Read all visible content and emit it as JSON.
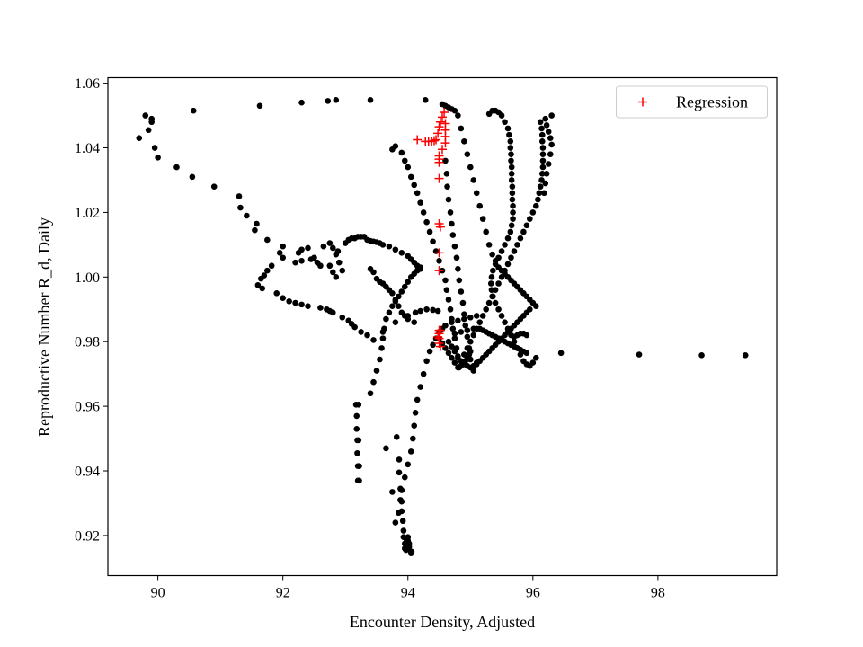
{
  "chart_data": {
    "type": "scatter",
    "title": "",
    "xlabel": "Encounter Density, Adjusted",
    "ylabel": "Reproductive Number R_d, Daily",
    "xlim": [
      89.2,
      99.9
    ],
    "ylim": [
      0.9076,
      1.0617
    ],
    "xticks": [
      90,
      92,
      94,
      96,
      98
    ],
    "yticks": [
      0.92,
      0.94,
      0.96,
      0.98,
      1.0,
      1.02,
      1.04,
      1.06
    ],
    "xtick_labels": [
      "90",
      "92",
      "94",
      "96",
      "98"
    ],
    "ytick_labels": [
      "0.92",
      "0.94",
      "0.96",
      "0.98",
      "1.00",
      "1.02",
      "1.04",
      "1.06"
    ],
    "grid": false,
    "legend_position": "top-right",
    "colors": {
      "data": "#000000",
      "regression": "#ff0000"
    },
    "series": [
      {
        "name": "",
        "marker": "dot",
        "x": [
          89.7,
          89.8,
          89.85,
          89.9,
          89.95,
          90.0,
          90.3,
          90.55,
          90.57,
          90.9,
          91.3,
          91.32,
          91.42,
          91.55,
          91.58,
          91.63,
          91.75,
          91.95,
          92.0,
          92.0,
          92.3,
          92.72,
          92.85,
          93.4,
          94.28,
          89.9,
          91.65,
          91.6,
          91.67,
          91.7,
          91.75,
          91.82,
          91.9,
          92.0,
          92.1,
          92.2,
          92.3,
          92.4,
          92.6,
          92.7,
          92.75,
          92.8,
          92.95,
          93.05,
          93.1,
          93.15,
          93.25,
          93.35,
          92.25,
          92.3,
          92.4,
          92.5,
          92.55,
          92.6,
          92.65,
          92.75,
          92.8,
          92.85,
          92.9,
          92.95,
          93.0,
          93.05,
          93.1,
          93.15,
          93.2,
          93.25,
          93.3,
          93.35,
          93.4,
          93.45,
          93.5,
          93.55,
          93.6,
          93.7,
          93.8,
          93.9,
          94.0,
          94.05,
          94.1,
          94.15,
          94.2,
          92.2,
          92.3,
          92.45,
          92.75,
          92.8,
          92.85,
          92.88,
          93.4,
          93.45,
          93.5,
          93.55,
          93.6,
          93.65,
          93.7,
          93.75,
          93.8,
          93.85,
          93.9,
          93.95,
          94.0,
          94.1,
          93.45,
          93.6,
          93.8,
          94.0,
          94.12,
          94.2,
          94.3,
          94.4,
          94.48,
          93.4,
          93.45,
          93.5,
          93.55,
          93.58,
          93.6,
          93.62,
          93.65,
          93.7,
          93.75,
          93.8,
          93.85,
          93.9,
          93.95,
          94.0,
          94.05,
          94.1,
          94.15,
          94.2,
          93.17,
          93.18,
          93.18,
          93.19,
          93.19,
          93.2,
          93.2,
          93.21,
          93.21,
          93.22,
          93.22,
          93.65,
          93.75,
          93.82,
          93.86,
          93.86,
          93.88,
          93.9,
          93.9,
          93.92,
          93.93,
          93.93,
          93.95,
          93.95,
          93.97,
          93.97,
          93.98,
          93.98,
          94.0,
          94.0,
          94.02,
          94.02,
          94.05,
          94.05,
          94.06,
          93.8,
          93.85,
          93.88,
          93.9,
          93.95,
          94.0,
          94.05,
          94.08,
          94.1,
          94.12,
          94.15,
          94.2,
          94.25,
          94.3,
          94.35,
          94.4,
          94.45,
          94.5,
          94.55,
          94.6,
          94.7,
          94.8,
          94.9,
          95.0,
          95.1,
          93.75,
          93.8,
          93.9,
          93.95,
          94.0,
          94.05,
          94.1,
          94.15,
          94.2,
          94.25,
          94.3,
          94.35,
          94.4,
          94.45,
          94.5,
          94.55,
          94.6,
          94.62,
          94.65,
          94.68,
          94.7,
          94.72,
          94.75,
          94.78,
          94.8,
          94.82,
          94.85,
          94.88,
          94.9,
          94.92,
          94.95,
          94.98,
          95.0,
          94.55,
          94.6,
          94.65,
          94.7,
          94.75,
          94.8,
          94.85,
          94.9,
          94.95,
          95.0,
          95.05,
          95.1,
          95.15,
          95.2,
          95.25,
          95.3,
          95.35,
          95.4,
          95.45,
          95.5,
          95.55,
          95.6,
          95.65,
          95.7,
          95.75,
          95.8,
          95.85,
          95.9,
          95.95,
          96.0,
          96.05,
          95.3,
          95.35,
          95.4,
          95.45,
          95.5,
          95.55,
          95.6,
          95.62,
          95.64,
          95.64,
          95.65,
          95.65,
          95.66,
          95.66,
          95.66,
          95.67,
          95.67,
          95.67,
          95.68,
          95.68,
          95.68,
          95.66,
          95.64,
          95.6,
          95.55,
          95.5,
          95.45,
          95.4,
          95.36,
          95.34,
          95.33,
          95.34,
          95.36,
          95.4,
          95.45,
          95.5,
          95.55,
          95.6,
          95.65,
          95.7,
          95.75,
          95.8,
          95.85,
          95.9,
          95.95,
          96.0,
          96.05,
          96.12,
          96.14,
          96.15,
          96.15,
          96.16,
          96.16,
          96.16,
          96.16,
          96.15,
          96.14,
          96.12,
          96.1,
          96.08,
          96.05,
          96.0,
          95.95,
          95.9,
          95.85,
          95.8,
          95.75,
          95.7,
          95.65,
          95.6,
          95.55,
          95.5,
          95.45,
          95.4,
          95.35,
          95.3,
          95.25,
          95.2,
          95.15,
          95.1,
          95.05,
          95.0,
          94.95,
          94.9,
          94.85,
          94.8,
          94.75,
          94.7,
          94.65,
          94.6,
          94.55,
          94.5,
          96.2,
          96.22,
          96.25,
          96.28,
          96.3,
          96.3,
          96.28,
          96.25,
          96.22,
          96.2,
          96.18,
          94.6,
          94.62,
          94.63,
          94.65,
          94.68,
          94.7,
          94.72,
          94.75,
          94.78,
          94.8,
          94.82,
          94.85,
          94.88,
          94.9,
          94.92,
          94.95,
          94.98,
          95.0,
          95.05,
          95.1,
          94.65,
          94.7,
          94.75,
          94.8,
          94.85,
          94.9,
          94.95,
          95.0,
          95.05,
          95.1,
          95.15,
          95.2,
          95.25,
          95.3,
          95.35,
          95.4,
          95.45,
          95.5,
          95.55,
          95.6,
          95.65,
          95.7,
          95.75,
          95.8,
          95.85,
          95.9,
          95.95,
          94.75,
          94.85,
          94.95,
          95.05,
          95.15,
          95.2,
          95.25,
          95.3,
          95.35,
          95.4,
          95.45,
          95.5,
          95.55,
          95.6,
          95.65,
          95.7,
          95.75,
          95.8,
          95.85,
          95.9,
          95.7,
          95.75,
          95.8,
          95.85,
          95.9,
          96.45,
          97.7,
          98.7,
          99.4
        ],
        "y": [
          1.043,
          1.05,
          1.0455,
          1.048,
          1.04,
          1.037,
          1.034,
          1.031,
          1.0515,
          1.028,
          1.025,
          1.0215,
          1.019,
          1.0145,
          1.0165,
          1.053,
          1.0115,
          1.0075,
          1.0095,
          1.006,
          1.054,
          1.0545,
          1.0548,
          1.0548,
          1.0548,
          1.049,
          0.9995,
          0.9975,
          0.9965,
          1.0005,
          1.002,
          1.0035,
          0.995,
          0.9935,
          0.9925,
          0.992,
          0.9915,
          0.991,
          0.9905,
          0.99,
          0.9895,
          0.989,
          0.9875,
          0.9865,
          0.9855,
          0.9845,
          0.983,
          0.982,
          1.0075,
          1.0085,
          1.009,
          1.006,
          1.0045,
          1.0035,
          1.0095,
          1.0105,
          1.009,
          1.007,
          1.0045,
          1.002,
          1.0105,
          1.0115,
          1.012,
          1.012,
          1.0125,
          1.0125,
          1.0125,
          1.0115,
          1.0112,
          1.011,
          1.0108,
          1.0105,
          1.01,
          1.0095,
          1.0085,
          1.0075,
          1.0065,
          1.0055,
          1.0045,
          1.0035,
          1.0025,
          1.0045,
          1.005,
          1.0055,
          1.0035,
          1.0015,
          1.0,
          1.008,
          1.0025,
          1.0015,
          0.9995,
          0.9985,
          0.998,
          0.997,
          0.996,
          0.995,
          0.993,
          0.991,
          0.989,
          0.988,
          0.987,
          0.986,
          0.9805,
          0.983,
          0.986,
          0.988,
          0.989,
          0.9895,
          0.99,
          0.9898,
          0.9895,
          0.964,
          0.9675,
          0.971,
          0.9745,
          0.978,
          0.981,
          0.984,
          0.987,
          0.989,
          0.991,
          0.9925,
          0.994,
          0.9955,
          0.997,
          0.9985,
          1.0,
          1.001,
          1.002,
          1.003,
          0.9605,
          0.957,
          0.953,
          0.9495,
          0.9455,
          0.9415,
          0.937,
          0.9605,
          0.9495,
          0.9415,
          0.937,
          0.947,
          0.9335,
          0.9505,
          0.9435,
          0.9395,
          0.9345,
          0.9305,
          0.9275,
          0.9245,
          0.9215,
          0.9195,
          0.9175,
          0.916,
          0.9155,
          0.9165,
          0.9175,
          0.9185,
          0.9195,
          0.9185,
          0.9175,
          0.9165,
          0.915,
          0.9145,
          0.915,
          0.924,
          0.927,
          0.931,
          0.934,
          0.938,
          0.942,
          0.946,
          0.95,
          0.954,
          0.958,
          0.962,
          0.966,
          0.97,
          0.974,
          0.977,
          0.979,
          0.981,
          0.983,
          0.984,
          0.985,
          0.986,
          0.9865,
          0.987,
          0.9875,
          0.988,
          1.0395,
          1.0405,
          1.0385,
          1.036,
          1.034,
          1.031,
          1.0285,
          1.026,
          1.023,
          1.02,
          1.017,
          1.014,
          1.011,
          1.008,
          1.005,
          1.002,
          0.999,
          0.996,
          0.993,
          0.99,
          0.987,
          0.984,
          0.981,
          0.978,
          0.975,
          0.972,
          0.9725,
          0.973,
          0.9735,
          0.974,
          0.975,
          0.976,
          0.977,
          1.0535,
          1.053,
          1.0525,
          1.052,
          1.0515,
          1.05,
          1.046,
          1.042,
          1.038,
          1.034,
          1.03,
          1.026,
          1.022,
          1.018,
          1.014,
          1.01,
          1.007,
          1.005,
          1.003,
          1.002,
          1.001,
          1.0,
          0.999,
          0.998,
          0.997,
          0.996,
          0.995,
          0.994,
          0.993,
          0.992,
          0.991,
          1.0505,
          1.0515,
          1.0515,
          1.051,
          1.05,
          1.048,
          1.046,
          1.044,
          1.042,
          1.04,
          1.038,
          1.036,
          1.034,
          1.032,
          1.03,
          1.028,
          1.026,
          1.024,
          1.022,
          1.02,
          1.018,
          1.016,
          1.014,
          1.012,
          1.01,
          1.008,
          1.006,
          1.004,
          1.002,
          1.0,
          0.998,
          0.996,
          0.994,
          0.992,
          0.99,
          0.988,
          0.986,
          0.984,
          0.982,
          0.98,
          0.978,
          0.976,
          0.974,
          0.973,
          0.9725,
          0.9735,
          0.975,
          1.048,
          1.046,
          1.044,
          1.042,
          1.04,
          1.038,
          1.036,
          1.034,
          1.032,
          1.03,
          1.028,
          1.026,
          1.024,
          1.022,
          1.02,
          1.018,
          1.016,
          1.014,
          1.012,
          1.01,
          1.008,
          1.006,
          1.004,
          1.002,
          1.0,
          0.998,
          0.996,
          0.994,
          0.992,
          0.99,
          0.988,
          0.986,
          0.984,
          0.982,
          0.98,
          0.978,
          0.976,
          0.974,
          0.972,
          0.9735,
          0.975,
          0.9765,
          0.978,
          0.9795,
          0.981,
          1.049,
          1.047,
          1.045,
          1.043,
          1.041,
          1.05,
          1.038,
          1.035,
          1.032,
          1.029,
          1.026,
          1.036,
          1.032,
          1.028,
          1.024,
          1.02,
          1.0165,
          1.013,
          1.0095,
          1.006,
          1.0025,
          0.999,
          0.9955,
          0.992,
          0.9885,
          0.985,
          0.9815,
          0.978,
          0.9745,
          0.971,
          0.9735,
          0.98,
          0.9785,
          0.977,
          0.9755,
          0.974,
          0.973,
          0.9725,
          0.972,
          0.9725,
          0.973,
          0.974,
          0.975,
          0.976,
          0.977,
          0.978,
          0.979,
          0.98,
          0.981,
          0.982,
          0.983,
          0.984,
          0.985,
          0.986,
          0.987,
          0.988,
          0.989,
          0.99,
          0.9825,
          0.983,
          0.9835,
          0.984,
          0.984,
          0.9835,
          0.983,
          0.9825,
          0.982,
          0.9815,
          0.981,
          0.9805,
          0.98,
          0.9795,
          0.979,
          0.9785,
          0.978,
          0.9775,
          0.977,
          0.9765,
          0.9815,
          0.982,
          0.9825,
          0.9825,
          0.982,
          0.9765,
          0.976,
          0.9758,
          0.9758
        ]
      },
      {
        "name": "Regression",
        "marker": "plus",
        "x": [
          94.15,
          94.28,
          94.33,
          94.38,
          94.42,
          94.45,
          94.48,
          94.5,
          94.52,
          94.55,
          94.58,
          94.6,
          94.6,
          94.6,
          94.6,
          94.55,
          94.5,
          94.5,
          94.5,
          94.5,
          94.5,
          94.52,
          94.5,
          94.5,
          94.52,
          94.5,
          94.48,
          94.5,
          94.52,
          94.5,
          94.5
        ],
        "y": [
          1.0425,
          1.042,
          1.042,
          1.042,
          1.0422,
          1.0425,
          1.0445,
          1.0465,
          1.048,
          1.0495,
          1.051,
          1.0475,
          1.0455,
          1.0435,
          1.0415,
          1.0395,
          1.0375,
          1.0355,
          1.0365,
          1.0305,
          1.0165,
          1.0155,
          1.0075,
          1.002,
          0.9835,
          0.9825,
          0.9815,
          0.9795,
          0.9785,
          0.981,
          0.9835
        ]
      }
    ]
  }
}
